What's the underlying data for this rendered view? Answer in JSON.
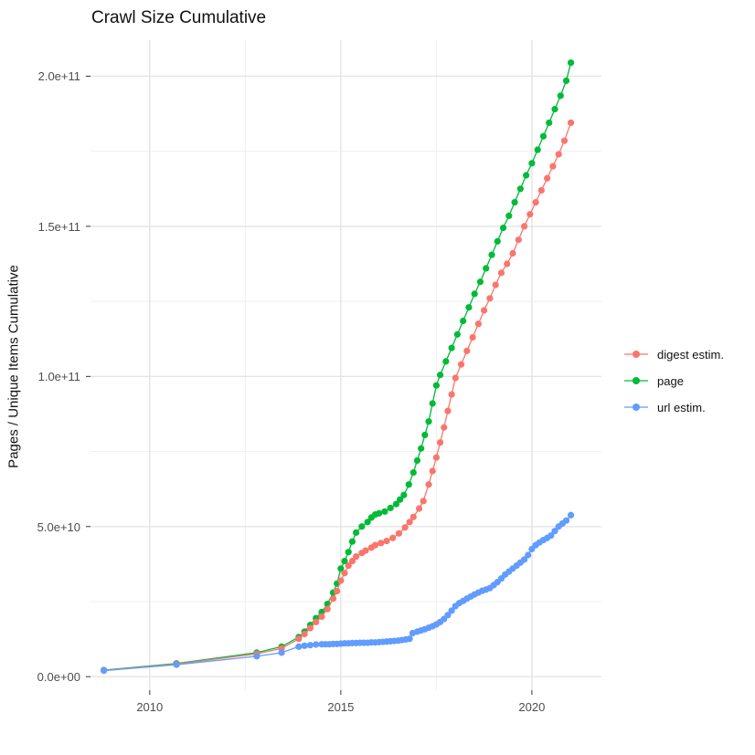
{
  "title": "Crawl Size Cumulative",
  "y_axis": {
    "label": "Pages / Unique Items Cumulative",
    "tick_labels": [
      "0.0e+00",
      "5.0e+10",
      "1.0e+11",
      "1.5e+11",
      "2.0e+11"
    ],
    "tick_values_1e10": [
      0,
      5,
      10,
      15,
      20
    ]
  },
  "x_axis": {
    "label": "",
    "tick_labels": [
      "2010",
      "2015",
      "2020"
    ],
    "tick_values": [
      2010,
      2015,
      2020
    ]
  },
  "legend": {
    "position": "right",
    "items": [
      {
        "label": "digest estim.",
        "color": "#F8766D",
        "series": "digest estim."
      },
      {
        "label": "page",
        "color": "#00BA38",
        "series": "page"
      },
      {
        "label": "url estim.",
        "color": "#619CFF",
        "series": "url estim."
      }
    ]
  },
  "colors": {
    "background": "#ffffff",
    "grid_major": "#e4e4e4",
    "grid_minor": "#efefef",
    "tick_mark": "#333333",
    "axis_text": "#4d4d4d",
    "title_text": "#111111"
  },
  "chart_data": {
    "type": "line",
    "title": "Crawl Size Cumulative",
    "xlabel": "",
    "ylabel": "Pages / Unique Items Cumulative",
    "xlim": [
      2008.45,
      2021.82
    ],
    "ylim_1e10": [
      -0.45,
      21.2
    ],
    "value_scale": 10000000000.0,
    "grid": true,
    "x_major_gridlines": [
      2010,
      2015,
      2020
    ],
    "x_minor_gridlines": [
      2012.5,
      2017.5
    ],
    "y_major_gridlines_1e10": [
      0,
      5,
      10,
      15,
      20
    ],
    "y_minor_gridlines_1e10": [
      2.5,
      7.5,
      12.5,
      17.5
    ],
    "legend_position": "right",
    "marker_radius_px": 3.6,
    "series": [
      {
        "name": "page",
        "color": "#00BA38",
        "points": [
          [
            2008.8,
            0.22
          ],
          [
            2010.7,
            0.44
          ],
          [
            2012.8,
            0.8
          ],
          [
            2013.45,
            1.0
          ],
          [
            2013.9,
            1.32
          ],
          [
            2014.05,
            1.5
          ],
          [
            2014.2,
            1.72
          ],
          [
            2014.35,
            1.95
          ],
          [
            2014.5,
            2.15
          ],
          [
            2014.65,
            2.42
          ],
          [
            2014.8,
            2.8
          ],
          [
            2014.9,
            3.1
          ],
          [
            2015.0,
            3.6
          ],
          [
            2015.1,
            3.85
          ],
          [
            2015.2,
            4.15
          ],
          [
            2015.3,
            4.5
          ],
          [
            2015.4,
            4.8
          ],
          [
            2015.55,
            5.0
          ],
          [
            2015.7,
            5.15
          ],
          [
            2015.8,
            5.3
          ],
          [
            2015.9,
            5.4
          ],
          [
            2016.0,
            5.44
          ],
          [
            2016.15,
            5.5
          ],
          [
            2016.3,
            5.62
          ],
          [
            2016.45,
            5.75
          ],
          [
            2016.55,
            5.9
          ],
          [
            2016.65,
            6.05
          ],
          [
            2016.78,
            6.4
          ],
          [
            2016.9,
            6.8
          ],
          [
            2017.0,
            7.2
          ],
          [
            2017.1,
            7.6
          ],
          [
            2017.2,
            8.05
          ],
          [
            2017.3,
            8.5
          ],
          [
            2017.4,
            9.1
          ],
          [
            2017.5,
            9.7
          ],
          [
            2017.6,
            10.05
          ],
          [
            2017.75,
            10.5
          ],
          [
            2017.9,
            10.95
          ],
          [
            2018.05,
            11.4
          ],
          [
            2018.2,
            11.85
          ],
          [
            2018.35,
            12.3
          ],
          [
            2018.5,
            12.75
          ],
          [
            2018.65,
            13.15
          ],
          [
            2018.8,
            13.6
          ],
          [
            2018.95,
            14.05
          ],
          [
            2019.1,
            14.5
          ],
          [
            2019.25,
            14.95
          ],
          [
            2019.4,
            15.35
          ],
          [
            2019.55,
            15.8
          ],
          [
            2019.7,
            16.25
          ],
          [
            2019.85,
            16.7
          ],
          [
            2020.0,
            17.1
          ],
          [
            2020.15,
            17.55
          ],
          [
            2020.3,
            18.0
          ],
          [
            2020.45,
            18.45
          ],
          [
            2020.6,
            18.9
          ],
          [
            2020.75,
            19.35
          ],
          [
            2020.9,
            19.85
          ],
          [
            2021.02,
            20.45
          ]
        ]
      },
      {
        "name": "digest estim.",
        "color": "#F8766D",
        "points": [
          [
            2008.8,
            0.21
          ],
          [
            2010.7,
            0.42
          ],
          [
            2012.8,
            0.76
          ],
          [
            2013.45,
            0.94
          ],
          [
            2013.9,
            1.26
          ],
          [
            2014.05,
            1.42
          ],
          [
            2014.2,
            1.62
          ],
          [
            2014.35,
            1.82
          ],
          [
            2014.5,
            2.0
          ],
          [
            2014.65,
            2.25
          ],
          [
            2014.8,
            2.6
          ],
          [
            2014.9,
            2.85
          ],
          [
            2015.0,
            3.2
          ],
          [
            2015.1,
            3.45
          ],
          [
            2015.2,
            3.7
          ],
          [
            2015.3,
            3.85
          ],
          [
            2015.4,
            4.0
          ],
          [
            2015.55,
            4.12
          ],
          [
            2015.65,
            4.2
          ],
          [
            2015.8,
            4.3
          ],
          [
            2015.9,
            4.38
          ],
          [
            2016.05,
            4.45
          ],
          [
            2016.2,
            4.52
          ],
          [
            2016.36,
            4.62
          ],
          [
            2016.52,
            4.77
          ],
          [
            2016.68,
            4.97
          ],
          [
            2016.8,
            5.15
          ],
          [
            2016.9,
            5.32
          ],
          [
            2017.05,
            5.6
          ],
          [
            2017.16,
            5.85
          ],
          [
            2017.3,
            6.4
          ],
          [
            2017.4,
            6.85
          ],
          [
            2017.5,
            7.3
          ],
          [
            2017.6,
            7.8
          ],
          [
            2017.7,
            8.3
          ],
          [
            2017.8,
            8.85
          ],
          [
            2017.9,
            9.4
          ],
          [
            2018.0,
            9.95
          ],
          [
            2018.15,
            10.4
          ],
          [
            2018.3,
            10.85
          ],
          [
            2018.45,
            11.3
          ],
          [
            2018.6,
            11.75
          ],
          [
            2018.75,
            12.2
          ],
          [
            2018.9,
            12.6
          ],
          [
            2019.05,
            13.05
          ],
          [
            2019.2,
            13.45
          ],
          [
            2019.35,
            13.75
          ],
          [
            2019.5,
            14.1
          ],
          [
            2019.65,
            14.55
          ],
          [
            2019.8,
            15.0
          ],
          [
            2019.95,
            15.4
          ],
          [
            2020.1,
            15.8
          ],
          [
            2020.25,
            16.2
          ],
          [
            2020.4,
            16.6
          ],
          [
            2020.55,
            17.0
          ],
          [
            2020.7,
            17.4
          ],
          [
            2020.85,
            17.85
          ],
          [
            2021.02,
            18.45
          ]
        ]
      },
      {
        "name": "url estim.",
        "color": "#619CFF",
        "points": [
          [
            2008.8,
            0.2
          ],
          [
            2010.7,
            0.4
          ],
          [
            2012.8,
            0.68
          ],
          [
            2013.45,
            0.8
          ],
          [
            2013.9,
            1.0
          ],
          [
            2014.05,
            1.03
          ],
          [
            2014.2,
            1.05
          ],
          [
            2014.35,
            1.07
          ],
          [
            2014.5,
            1.08
          ],
          [
            2014.6,
            1.08
          ],
          [
            2014.7,
            1.08
          ],
          [
            2014.8,
            1.09
          ],
          [
            2014.9,
            1.09
          ],
          [
            2015.0,
            1.1
          ],
          [
            2015.1,
            1.11
          ],
          [
            2015.2,
            1.11
          ],
          [
            2015.3,
            1.12
          ],
          [
            2015.4,
            1.12
          ],
          [
            2015.5,
            1.13
          ],
          [
            2015.6,
            1.13
          ],
          [
            2015.7,
            1.13
          ],
          [
            2015.8,
            1.14
          ],
          [
            2015.9,
            1.14
          ],
          [
            2016.0,
            1.15
          ],
          [
            2016.1,
            1.16
          ],
          [
            2016.2,
            1.17
          ],
          [
            2016.3,
            1.18
          ],
          [
            2016.4,
            1.19
          ],
          [
            2016.5,
            1.2
          ],
          [
            2016.6,
            1.22
          ],
          [
            2016.7,
            1.24
          ],
          [
            2016.8,
            1.26
          ],
          [
            2016.88,
            1.45
          ],
          [
            2017.0,
            1.5
          ],
          [
            2017.1,
            1.54
          ],
          [
            2017.2,
            1.58
          ],
          [
            2017.3,
            1.63
          ],
          [
            2017.4,
            1.68
          ],
          [
            2017.5,
            1.74
          ],
          [
            2017.6,
            1.82
          ],
          [
            2017.7,
            1.92
          ],
          [
            2017.8,
            2.05
          ],
          [
            2017.9,
            2.2
          ],
          [
            2018.0,
            2.35
          ],
          [
            2018.1,
            2.45
          ],
          [
            2018.2,
            2.52
          ],
          [
            2018.3,
            2.6
          ],
          [
            2018.4,
            2.67
          ],
          [
            2018.5,
            2.74
          ],
          [
            2018.6,
            2.8
          ],
          [
            2018.7,
            2.86
          ],
          [
            2018.8,
            2.9
          ],
          [
            2018.9,
            2.95
          ],
          [
            2019.0,
            3.05
          ],
          [
            2019.1,
            3.15
          ],
          [
            2019.2,
            3.27
          ],
          [
            2019.3,
            3.4
          ],
          [
            2019.4,
            3.5
          ],
          [
            2019.5,
            3.6
          ],
          [
            2019.6,
            3.7
          ],
          [
            2019.7,
            3.8
          ],
          [
            2019.8,
            3.9
          ],
          [
            2019.9,
            4.05
          ],
          [
            2020.0,
            4.25
          ],
          [
            2020.1,
            4.38
          ],
          [
            2020.2,
            4.47
          ],
          [
            2020.3,
            4.55
          ],
          [
            2020.4,
            4.62
          ],
          [
            2020.5,
            4.7
          ],
          [
            2020.6,
            4.85
          ],
          [
            2020.7,
            5.0
          ],
          [
            2020.8,
            5.1
          ],
          [
            2020.9,
            5.2
          ],
          [
            2021.02,
            5.38
          ]
        ]
      }
    ]
  }
}
